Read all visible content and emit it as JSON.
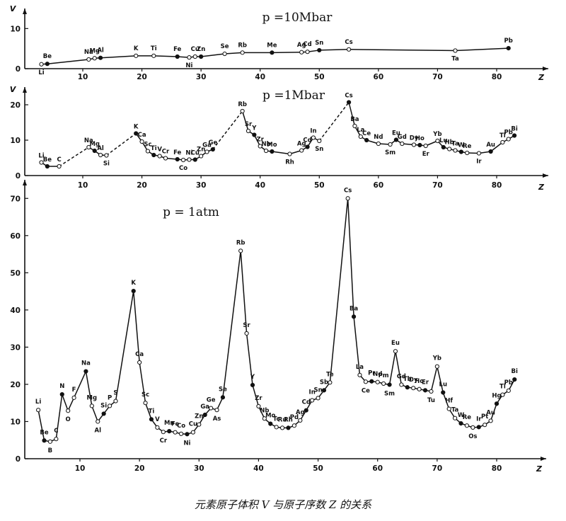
{
  "caption": "元素原子体积 V 与原子序数 Z 的关系",
  "chart_data": [
    {
      "type": "line",
      "title": "p =10Mbar",
      "ylabel": "V",
      "xlabel": "Z",
      "xlim": [
        0,
        84
      ],
      "ylim": [
        0,
        15
      ],
      "yticks": [
        0,
        10
      ],
      "xticks": [
        10,
        20,
        30,
        40,
        50,
        60,
        70,
        80
      ],
      "line_style": "solid",
      "points": [
        {
          "z": 3,
          "v": 1.1,
          "label": "Li"
        },
        {
          "z": 4,
          "v": 1.2,
          "label": "Be"
        },
        {
          "z": 11,
          "v": 2.3,
          "label": "Na"
        },
        {
          "z": 12,
          "v": 2.6,
          "label": "Mg"
        },
        {
          "z": 13,
          "v": 2.7,
          "label": "Al"
        },
        {
          "z": 19,
          "v": 3.2,
          "label": "K"
        },
        {
          "z": 22,
          "v": 3.2,
          "label": "Ti"
        },
        {
          "z": 26,
          "v": 3.0,
          "label": "Fe"
        },
        {
          "z": 28,
          "v": 2.8,
          "label": "Ni"
        },
        {
          "z": 29,
          "v": 3.0,
          "label": "Cu"
        },
        {
          "z": 30,
          "v": 3.0,
          "label": "Zn"
        },
        {
          "z": 34,
          "v": 3.7,
          "label": "Se"
        },
        {
          "z": 37,
          "v": 4.0,
          "label": "Rb"
        },
        {
          "z": 42,
          "v": 4.0,
          "label": "Me"
        },
        {
          "z": 47,
          "v": 4.1,
          "label": "Ag"
        },
        {
          "z": 48,
          "v": 4.2,
          "label": "Cd"
        },
        {
          "z": 50,
          "v": 4.6,
          "label": "Sn"
        },
        {
          "z": 55,
          "v": 4.8,
          "label": "Cs"
        },
        {
          "z": 73,
          "v": 4.5,
          "label": "Ta"
        },
        {
          "z": 82,
          "v": 5.1,
          "label": "Pb"
        }
      ]
    },
    {
      "type": "line",
      "title": "p =1Mbar",
      "ylabel": "V",
      "xlabel": "Z",
      "xlim": [
        0,
        84
      ],
      "ylim": [
        0,
        25
      ],
      "yticks": [
        0,
        10,
        20
      ],
      "xticks": [
        10,
        20,
        30,
        40,
        50,
        60,
        70,
        80
      ],
      "line_style": "mixed solid and dashed",
      "points": [
        {
          "z": 3,
          "v": 3.7,
          "label": "Li"
        },
        {
          "z": 4,
          "v": 2.6,
          "label": "Be"
        },
        {
          "z": 6,
          "v": 2.6,
          "label": "C"
        },
        {
          "z": 11,
          "v": 8.0,
          "label": "Na"
        },
        {
          "z": 12,
          "v": 7.0,
          "label": "Mg"
        },
        {
          "z": 13,
          "v": 5.8,
          "label": "Al"
        },
        {
          "z": 14,
          "v": 5.7,
          "label": "Si"
        },
        {
          "z": 19,
          "v": 11.9,
          "label": "K"
        },
        {
          "z": 20,
          "v": 9.6,
          "label": "Ca"
        },
        {
          "z": 21,
          "v": 6.9,
          "label": "Sc"
        },
        {
          "z": 22,
          "v": 5.8,
          "label": "Ti"
        },
        {
          "z": 23,
          "v": 5.5,
          "label": "V"
        },
        {
          "z": 24,
          "v": 4.9,
          "label": "Cr"
        },
        {
          "z": 26,
          "v": 4.6,
          "label": "Fe"
        },
        {
          "z": 27,
          "v": 4.4,
          "label": "Co"
        },
        {
          "z": 28,
          "v": 4.5,
          "label": "Ni"
        },
        {
          "z": 29,
          "v": 4.5,
          "label": "Cu"
        },
        {
          "z": 30,
          "v": 5.5,
          "label": "Zn"
        },
        {
          "z": 31,
          "v": 6.7,
          "label": "Ga"
        },
        {
          "z": 32,
          "v": 7.4,
          "label": "Ge"
        },
        {
          "z": 37,
          "v": 18.2,
          "label": "Rb"
        },
        {
          "z": 38,
          "v": 12.6,
          "label": "Sr"
        },
        {
          "z": 39,
          "v": 11.5,
          "label": "Y"
        },
        {
          "z": 40,
          "v": 8.3,
          "label": "Zr"
        },
        {
          "z": 41,
          "v": 7.0,
          "label": "Nb"
        },
        {
          "z": 42,
          "v": 6.8,
          "label": "Mo"
        },
        {
          "z": 45,
          "v": 6.1,
          "label": "Rh"
        },
        {
          "z": 47,
          "v": 7.1,
          "label": "Ag"
        },
        {
          "z": 48,
          "v": 8.1,
          "label": "Cd"
        },
        {
          "z": 49,
          "v": 10.7,
          "label": "In"
        },
        {
          "z": 50,
          "v": 9.8,
          "label": "Sn"
        },
        {
          "z": 55,
          "v": 20.7,
          "label": "Cs"
        },
        {
          "z": 56,
          "v": 14.0,
          "label": "Ba"
        },
        {
          "z": 57,
          "v": 11.0,
          "label": "La"
        },
        {
          "z": 58,
          "v": 10.0,
          "label": "Ce"
        },
        {
          "z": 60,
          "v": 9.0,
          "label": "Nd"
        },
        {
          "z": 62,
          "v": 8.8,
          "label": "Sm"
        },
        {
          "z": 63,
          "v": 10.1,
          "label": "Eu"
        },
        {
          "z": 64,
          "v": 9.0,
          "label": "Gd"
        },
        {
          "z": 66,
          "v": 8.7,
          "label": "Dy"
        },
        {
          "z": 67,
          "v": 8.6,
          "label": "Ho"
        },
        {
          "z": 68,
          "v": 8.4,
          "label": "Er"
        },
        {
          "z": 70,
          "v": 9.8,
          "label": "Yb"
        },
        {
          "z": 71,
          "v": 8.0,
          "label": "Lu"
        },
        {
          "z": 72,
          "v": 7.5,
          "label": "Hb"
        },
        {
          "z": 73,
          "v": 7.1,
          "label": "Ta"
        },
        {
          "z": 74,
          "v": 6.7,
          "label": "W"
        },
        {
          "z": 75,
          "v": 6.4,
          "label": "Re"
        },
        {
          "z": 77,
          "v": 6.3,
          "label": "Ir"
        },
        {
          "z": 79,
          "v": 6.8,
          "label": "Au"
        },
        {
          "z": 81,
          "v": 9.4,
          "label": "Tl"
        },
        {
          "z": 82,
          "v": 10.3,
          "label": "Pb"
        },
        {
          "z": 83,
          "v": 11.3,
          "label": "Bi"
        }
      ],
      "dashed_segments": [
        [
          6,
          11
        ],
        [
          14,
          19
        ],
        [
          32,
          37
        ],
        [
          50,
          55
        ]
      ]
    },
    {
      "type": "line",
      "title": "p = 1atm",
      "ylabel": "",
      "xlabel": "Z",
      "xlim": [
        0,
        84
      ],
      "ylim": [
        0,
        75
      ],
      "yticks": [
        0,
        10,
        20,
        30,
        40,
        50,
        60,
        70
      ],
      "xticks": [
        10,
        20,
        30,
        40,
        50,
        60,
        70,
        80
      ],
      "line_style": "solid",
      "points": [
        {
          "z": 3,
          "v": 13.1,
          "label": "Li"
        },
        {
          "z": 4,
          "v": 4.9,
          "label": "Be"
        },
        {
          "z": 5,
          "v": 4.6,
          "label": "B"
        },
        {
          "z": 6,
          "v": 5.3,
          "label": "C"
        },
        {
          "z": 7,
          "v": 17.3,
          "label": "N"
        },
        {
          "z": 8,
          "v": 12.9,
          "label": "O"
        },
        {
          "z": 9,
          "v": 16.4,
          "label": "F"
        },
        {
          "z": 11,
          "v": 23.5,
          "label": "Na"
        },
        {
          "z": 12,
          "v": 14.2,
          "label": "Mg"
        },
        {
          "z": 13,
          "v": 10.0,
          "label": "Al"
        },
        {
          "z": 14,
          "v": 12.1,
          "label": "Si"
        },
        {
          "z": 15,
          "v": 14.2,
          "label": "P"
        },
        {
          "z": 16,
          "v": 15.5,
          "label": "S"
        },
        {
          "z": 19,
          "v": 45.1,
          "label": "K"
        },
        {
          "z": 20,
          "v": 25.9,
          "label": "Ca"
        },
        {
          "z": 21,
          "v": 15.0,
          "label": "Sc"
        },
        {
          "z": 22,
          "v": 10.6,
          "label": "Ti"
        },
        {
          "z": 23,
          "v": 8.4,
          "label": "V"
        },
        {
          "z": 24,
          "v": 7.2,
          "label": "Cr"
        },
        {
          "z": 25,
          "v": 7.4,
          "label": "Mn"
        },
        {
          "z": 26,
          "v": 7.1,
          "label": "Fe"
        },
        {
          "z": 27,
          "v": 6.7,
          "label": "Co"
        },
        {
          "z": 28,
          "v": 6.6,
          "label": "Ni"
        },
        {
          "z": 29,
          "v": 7.1,
          "label": "Cu"
        },
        {
          "z": 30,
          "v": 9.2,
          "label": "Zn"
        },
        {
          "z": 31,
          "v": 11.8,
          "label": "Ga"
        },
        {
          "z": 32,
          "v": 13.6,
          "label": "Ge"
        },
        {
          "z": 33,
          "v": 13.1,
          "label": "As"
        },
        {
          "z": 34,
          "v": 16.5,
          "label": "Se"
        },
        {
          "z": 37,
          "v": 55.9,
          "label": "Rb"
        },
        {
          "z": 38,
          "v": 33.7,
          "label": "Sr"
        },
        {
          "z": 39,
          "v": 19.8,
          "label": "Y"
        },
        {
          "z": 40,
          "v": 14.1,
          "label": "Zr"
        },
        {
          "z": 41,
          "v": 10.8,
          "label": "Nb"
        },
        {
          "z": 42,
          "v": 9.4,
          "label": "Mo"
        },
        {
          "z": 43,
          "v": 8.5,
          "label": "Tc"
        },
        {
          "z": 44,
          "v": 8.3,
          "label": "Ru"
        },
        {
          "z": 45,
          "v": 8.3,
          "label": "Rh"
        },
        {
          "z": 46,
          "v": 8.9,
          "label": "Pd"
        },
        {
          "z": 47,
          "v": 10.3,
          "label": "Ag"
        },
        {
          "z": 48,
          "v": 13.0,
          "label": "Cd"
        },
        {
          "z": 49,
          "v": 15.7,
          "label": "In"
        },
        {
          "z": 50,
          "v": 16.3,
          "label": "Sn"
        },
        {
          "z": 51,
          "v": 18.4,
          "label": "Sb"
        },
        {
          "z": 52,
          "v": 20.5,
          "label": "Te"
        },
        {
          "z": 55,
          "v": 70.0,
          "label": "Cs"
        },
        {
          "z": 56,
          "v": 38.2,
          "label": "Ba"
        },
        {
          "z": 57,
          "v": 22.5,
          "label": "La"
        },
        {
          "z": 58,
          "v": 20.7,
          "label": "Ce"
        },
        {
          "z": 59,
          "v": 20.8,
          "label": "Pr"
        },
        {
          "z": 60,
          "v": 20.6,
          "label": "Nd"
        },
        {
          "z": 61,
          "v": 20.2,
          "label": "Pm"
        },
        {
          "z": 62,
          "v": 19.9,
          "label": "Sm"
        },
        {
          "z": 63,
          "v": 28.9,
          "label": "Eu"
        },
        {
          "z": 64,
          "v": 19.9,
          "label": "Gd"
        },
        {
          "z": 65,
          "v": 19.2,
          "label": "Tb"
        },
        {
          "z": 66,
          "v": 19.0,
          "label": "Dy"
        },
        {
          "z": 67,
          "v": 18.7,
          "label": "Ho"
        },
        {
          "z": 68,
          "v": 18.4,
          "label": "Er"
        },
        {
          "z": 69,
          "v": 18.1,
          "label": "Tu"
        },
        {
          "z": 70,
          "v": 24.8,
          "label": "Yb"
        },
        {
          "z": 71,
          "v": 17.8,
          "label": "Lu"
        },
        {
          "z": 72,
          "v": 13.4,
          "label": "Hf"
        },
        {
          "z": 73,
          "v": 10.9,
          "label": "Ta"
        },
        {
          "z": 74,
          "v": 9.5,
          "label": "W"
        },
        {
          "z": 75,
          "v": 8.9,
          "label": "Re"
        },
        {
          "z": 76,
          "v": 8.4,
          "label": "Os"
        },
        {
          "z": 77,
          "v": 8.5,
          "label": "Ir"
        },
        {
          "z": 78,
          "v": 9.1,
          "label": "Pt"
        },
        {
          "z": 79,
          "v": 10.2,
          "label": "Au"
        },
        {
          "z": 80,
          "v": 14.8,
          "label": "Hg"
        },
        {
          "z": 81,
          "v": 17.2,
          "label": "Tl"
        },
        {
          "z": 82,
          "v": 18.3,
          "label": "Pb"
        },
        {
          "z": 83,
          "v": 21.3,
          "label": "Bi"
        }
      ]
    }
  ]
}
